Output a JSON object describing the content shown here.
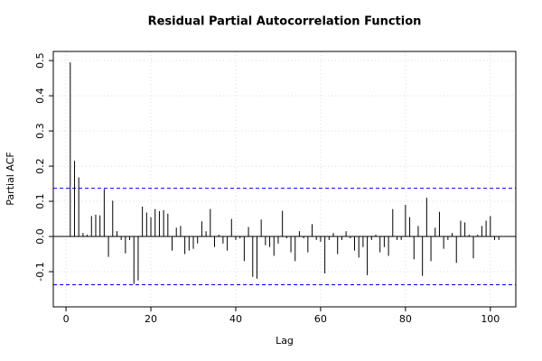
{
  "chart_data": {
    "type": "pacf",
    "title": "Residual Partial Autocorrelation Function",
    "x_label": "Lag",
    "y_label": "Partial ACF",
    "x": [
      1,
      2,
      3,
      4,
      5,
      6,
      7,
      8,
      9,
      10,
      11,
      12,
      13,
      14,
      15,
      16,
      17,
      18,
      19,
      20,
      21,
      22,
      23,
      24,
      25,
      26,
      27,
      28,
      29,
      30,
      31,
      32,
      33,
      34,
      35,
      36,
      37,
      38,
      39,
      40,
      41,
      42,
      43,
      44,
      45,
      46,
      47,
      48,
      49,
      50,
      51,
      52,
      53,
      54,
      55,
      56,
      57,
      58,
      59,
      60,
      61,
      62,
      63,
      64,
      65,
      66,
      67,
      68,
      69,
      70,
      71,
      72,
      73,
      74,
      75,
      76,
      77,
      78,
      79,
      80,
      81,
      82,
      83,
      84,
      85,
      86,
      87,
      88,
      89,
      90,
      91,
      92,
      93,
      94,
      95,
      96,
      97,
      98,
      99,
      100,
      101,
      102
    ],
    "values": [
      0.495,
      0.215,
      0.168,
      0.01,
      0.005,
      0.058,
      0.062,
      0.06,
      0.135,
      -0.058,
      0.102,
      0.015,
      -0.01,
      -0.048,
      -0.01,
      -0.135,
      -0.125,
      0.085,
      0.068,
      0.055,
      0.078,
      0.072,
      0.075,
      0.065,
      -0.04,
      0.025,
      0.03,
      -0.05,
      -0.04,
      -0.035,
      -0.02,
      0.043,
      0.015,
      0.078,
      -0.03,
      0.005,
      -0.02,
      -0.04,
      0.05,
      -0.01,
      -0.005,
      -0.07,
      0.027,
      -0.115,
      -0.12,
      0.048,
      -0.025,
      -0.03,
      -0.055,
      -0.02,
      0.073,
      -0.005,
      -0.045,
      -0.07,
      0.015,
      -0.005,
      -0.045,
      0.035,
      -0.01,
      -0.015,
      -0.105,
      -0.01,
      0.01,
      -0.05,
      -0.01,
      0.015,
      -0.005,
      -0.04,
      -0.06,
      -0.03,
      -0.11,
      -0.01,
      0.005,
      -0.045,
      -0.03,
      -0.055,
      0.078,
      -0.01,
      -0.01,
      0.09,
      0.055,
      -0.065,
      0.03,
      -0.112,
      0.11,
      -0.07,
      0.025,
      0.07,
      -0.035,
      -0.01,
      0.01,
      -0.075,
      0.045,
      0.04,
      0.005,
      -0.062,
      0.005,
      0.03,
      0.045,
      0.058,
      -0.01,
      -0.01
    ],
    "color": "#000000",
    "confidence_bounds": [
      0.137,
      -0.137
    ],
    "confidence_color": "#0000ff",
    "xlim": [
      -3,
      106
    ],
    "ylim": [
      -0.2,
      0.526
    ],
    "xticks": [
      0,
      20,
      40,
      60,
      80,
      100
    ],
    "yticks": [
      -0.1,
      {
        "value": 0,
        "label": "0.0"
      },
      0.1,
      0.2,
      0.3,
      0.4,
      0.5
    ],
    "grid": true
  }
}
